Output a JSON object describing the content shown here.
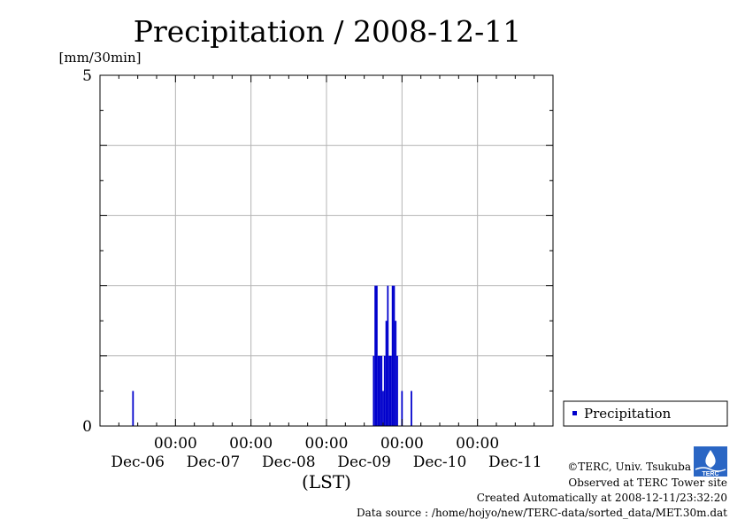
{
  "chart_data": {
    "type": "bar",
    "title": "Precipitation / 2008-12-11",
    "ylabel": "[mm/30min]",
    "xlabel": "(LST)",
    "ylim": [
      0,
      5
    ],
    "y_tick_labels": [
      "0",
      "5"
    ],
    "x_tick_labels": [
      {
        "time": "00:00",
        "date": "Dec-06"
      },
      {
        "time": "00:00",
        "date": "Dec-07"
      },
      {
        "time": "00:00",
        "date": "Dec-08"
      },
      {
        "time": "00:00",
        "date": "Dec-09"
      },
      {
        "time": "00:00",
        "date": "Dec-10"
      },
      {
        "time": "00:00",
        "date": "Dec-11"
      }
    ],
    "x_range": [
      "2008-12-05 00:00",
      "2008-12-11 00:00"
    ],
    "grid": true,
    "legend_position": "bottom-right",
    "series": [
      {
        "name": "Precipitation",
        "color": "#0000cc",
        "points": [
          {
            "t": "2008-12-05 10:30",
            "v": 0.5
          },
          {
            "t": "2008-12-08 15:00",
            "v": 1.0
          },
          {
            "t": "2008-12-08 15:30",
            "v": 2.0
          },
          {
            "t": "2008-12-08 16:00",
            "v": 2.0
          },
          {
            "t": "2008-12-08 16:30",
            "v": 1.0
          },
          {
            "t": "2008-12-08 17:00",
            "v": 1.0
          },
          {
            "t": "2008-12-08 17:30",
            "v": 1.0
          },
          {
            "t": "2008-12-08 18:00",
            "v": 0.5
          },
          {
            "t": "2008-12-08 18:30",
            "v": 1.0
          },
          {
            "t": "2008-12-08 19:00",
            "v": 1.5
          },
          {
            "t": "2008-12-08 19:30",
            "v": 2.0
          },
          {
            "t": "2008-12-08 20:00",
            "v": 1.0
          },
          {
            "t": "2008-12-08 20:30",
            "v": 1.0
          },
          {
            "t": "2008-12-08 21:00",
            "v": 2.0
          },
          {
            "t": "2008-12-08 21:30",
            "v": 2.0
          },
          {
            "t": "2008-12-08 22:00",
            "v": 1.5
          },
          {
            "t": "2008-12-08 22:30",
            "v": 1.0
          },
          {
            "t": "2008-12-09 00:00",
            "v": 0.5
          },
          {
            "t": "2008-12-09 03:00",
            "v": 0.5
          }
        ]
      }
    ]
  },
  "credits": [
    "©TERC, Univ. Tsukuba",
    "Observed at TERC Tower site",
    "Created Automatically at 2008-12-11/23:32:20",
    "Data source : /home/hojyo/new/TERC-data/sorted_data/MET.30m.dat"
  ],
  "logo_text": "TERC",
  "colors": {
    "bar": "#0000cc",
    "grid": "#b4b4b4",
    "logo": "#2a66c4"
  }
}
